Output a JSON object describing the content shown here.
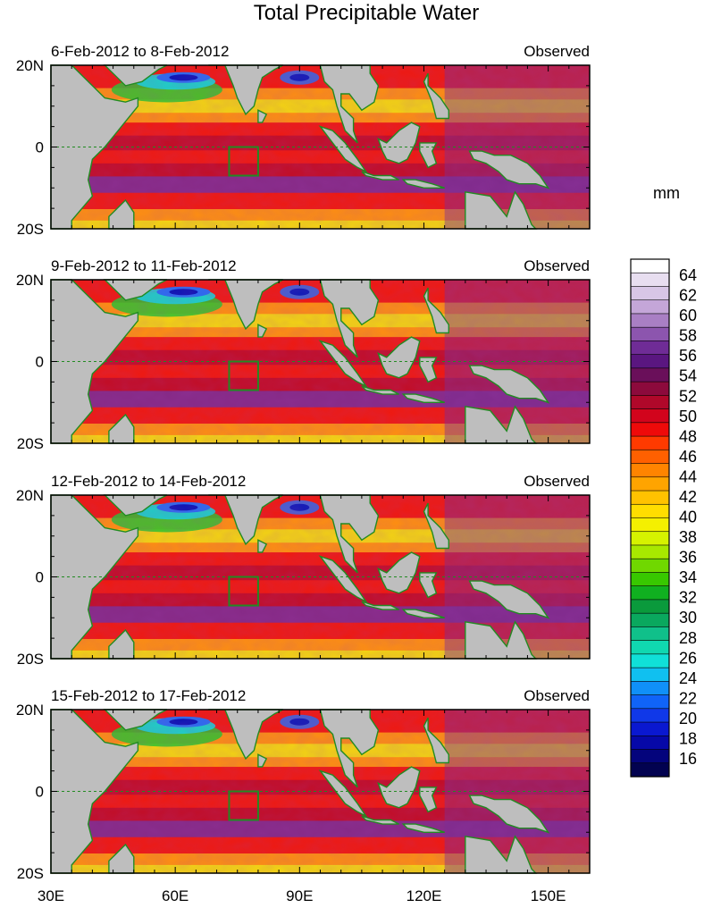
{
  "chart_data": {
    "type": "heatmap",
    "title": "Total Precipitable Water",
    "units_label": "mm",
    "observed_label": "Observed",
    "x_range": [
      30,
      160
    ],
    "y_range": [
      -20,
      20
    ],
    "x_ticks": [
      {
        "value": 30,
        "label": "30E"
      },
      {
        "value": 60,
        "label": "60E"
      },
      {
        "value": 90,
        "label": "90E"
      },
      {
        "value": 120,
        "label": "120E"
      },
      {
        "value": 150,
        "label": "150E"
      }
    ],
    "y_ticks": [
      {
        "value": 20,
        "label": "20N"
      },
      {
        "value": 0,
        "label": "0"
      },
      {
        "value": -20,
        "label": "20S"
      }
    ],
    "panels": [
      {
        "date_range": "6-Feb-2012 to 8-Feb-2012"
      },
      {
        "date_range": "9-Feb-2012 to 11-Feb-2012"
      },
      {
        "date_range": "12-Feb-2012 to 14-Feb-2012"
      },
      {
        "date_range": "15-Feb-2012 to 17-Feb-2012"
      }
    ],
    "box_region": {
      "lon": [
        73,
        80
      ],
      "lat": [
        -7,
        0
      ]
    },
    "colorbar": {
      "labels": [
        "64",
        "62",
        "60",
        "58",
        "56",
        "54",
        "52",
        "50",
        "48",
        "46",
        "44",
        "42",
        "40",
        "38",
        "36",
        "34",
        "32",
        "30",
        "28",
        "26",
        "24",
        "22",
        "20",
        "18",
        "16"
      ],
      "colors": [
        "#ffffff",
        "#e8def0",
        "#d8c6e6",
        "#c4a6d8",
        "#a97fc4",
        "#8c55ae",
        "#6f2c96",
        "#5a1680",
        "#6a0f5a",
        "#8c0a3c",
        "#b0082a",
        "#d2041c",
        "#ee0a0a",
        "#ff3a00",
        "#ff6000",
        "#ff8400",
        "#ffa400",
        "#ffc200",
        "#ffdd00",
        "#f4f000",
        "#d6f200",
        "#a8e800",
        "#70d800",
        "#38c800",
        "#10b020",
        "#0a9a3c",
        "#0aa85e",
        "#10c08a",
        "#10d8b0",
        "#10e0d8",
        "#10c0f0",
        "#1090f8",
        "#1064f8",
        "#1038e8",
        "#0a18d0",
        "#0608a8",
        "#04047c",
        "#020250"
      ]
    },
    "series": [
      {
        "name": "land",
        "color": "#bebebe"
      },
      {
        "name": "coastline",
        "color": "#228b22"
      }
    ]
  }
}
